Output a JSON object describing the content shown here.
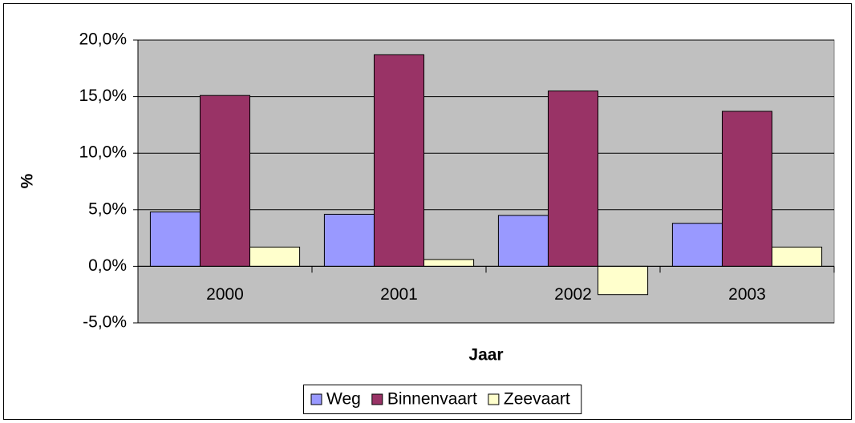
{
  "chart_data": {
    "type": "bar",
    "x_label": "Jaar",
    "y_label": "%",
    "categories": [
      "2000",
      "2001",
      "2002",
      "2003"
    ],
    "series": [
      {
        "name": "Weg",
        "color": "#9999ff",
        "values": [
          4.8,
          4.6,
          4.5,
          3.8
        ]
      },
      {
        "name": "Binnenvaart",
        "color": "#993366",
        "values": [
          15.1,
          18.7,
          15.5,
          13.7
        ]
      },
      {
        "name": "Zeevaart",
        "color": "#ffffcc",
        "values": [
          1.7,
          0.6,
          -2.5,
          1.7
        ]
      }
    ],
    "ylim": [
      -5,
      20
    ],
    "yticks": [
      {
        "value": -5,
        "label": "-5,0%"
      },
      {
        "value": 0,
        "label": "0,0%"
      },
      {
        "value": 5,
        "label": "5,0%"
      },
      {
        "value": 10,
        "label": "10,0%"
      },
      {
        "value": 15,
        "label": "15,0%"
      },
      {
        "value": 20,
        "label": "20,0%"
      }
    ],
    "grid": true,
    "legend": "bottom"
  }
}
